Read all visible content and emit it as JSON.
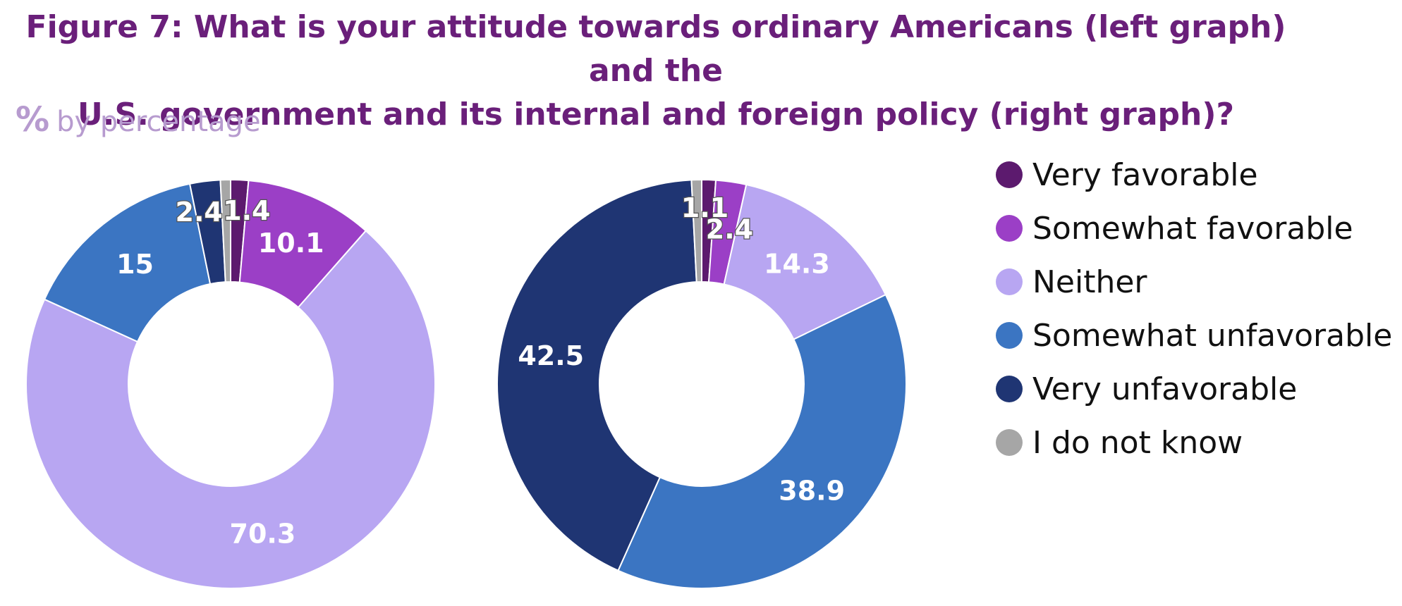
{
  "title_line1": "Figure 7: What is your attitude towards ordinary Americans (left graph) and the",
  "title_line2": "U.S. government and its internal and foreign policy (right graph)?",
  "unit": {
    "icon": "%",
    "label": "by percentage"
  },
  "chart_data": {
    "type": "pie",
    "donut": true,
    "categories": [
      "Very favorable",
      "Somewhat favorable",
      "Neither",
      "Somewhat unfavorable",
      "Very unfavorable",
      "I do not know"
    ],
    "colors": [
      "#5c1a6e",
      "#9b3fc6",
      "#b8a6f2",
      "#3b75c2",
      "#1f3573",
      "#a6a6a6"
    ],
    "legend_position": "right",
    "series": [
      {
        "values": [
          1.4,
          10.1,
          70.3,
          15,
          2.4,
          0.8
        ],
        "labels": [
          "1.4",
          "10.1",
          "70.3",
          "15",
          "2.4",
          ""
        ]
      },
      {
        "values": [
          1.1,
          2.4,
          14.3,
          38.9,
          42.5,
          0.8
        ],
        "labels": [
          "1.1",
          "2.4",
          "14.3",
          "38.9",
          "42.5",
          ""
        ]
      }
    ]
  }
}
